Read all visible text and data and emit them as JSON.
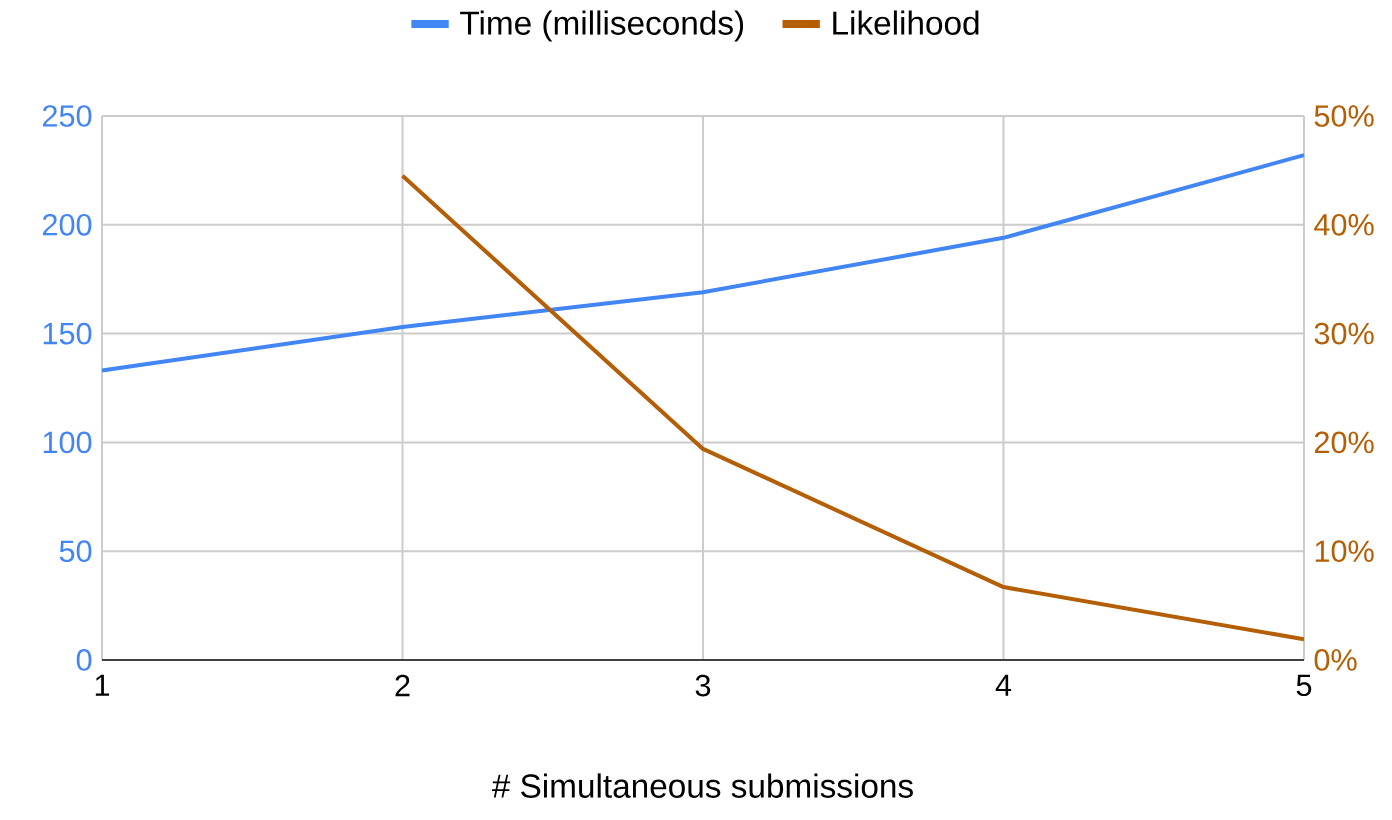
{
  "chart_data": {
    "type": "line",
    "xlabel": "# Simultaneous submissions",
    "x": [
      1,
      2,
      3,
      4,
      5
    ],
    "series": [
      {
        "name": "Time (milliseconds)",
        "color": "#4285f4",
        "values": [
          133,
          153,
          169,
          194,
          232
        ]
      },
      {
        "name": "Likelihood",
        "color": "#b45f06",
        "axis": "y2",
        "values": [
          null,
          44.5,
          19.4,
          6.7,
          1.9
        ]
      }
    ],
    "xlim": [
      1,
      5
    ],
    "xticks": [
      1,
      2,
      3,
      4,
      5
    ],
    "ylim": [
      0,
      250
    ],
    "yticks": [
      0,
      50,
      100,
      150,
      200,
      250
    ],
    "y2lim": [
      0,
      50
    ],
    "y2ticks": [
      {
        "value": 0,
        "label": "0%"
      },
      {
        "value": 10,
        "label": "10%"
      },
      {
        "value": 20,
        "label": "20%"
      },
      {
        "value": 30,
        "label": "30%"
      },
      {
        "value": 40,
        "label": "40%"
      },
      {
        "value": 50,
        "label": "50%"
      }
    ],
    "grid": true,
    "legend": "top",
    "marker": "none",
    "line_style": "solid"
  }
}
